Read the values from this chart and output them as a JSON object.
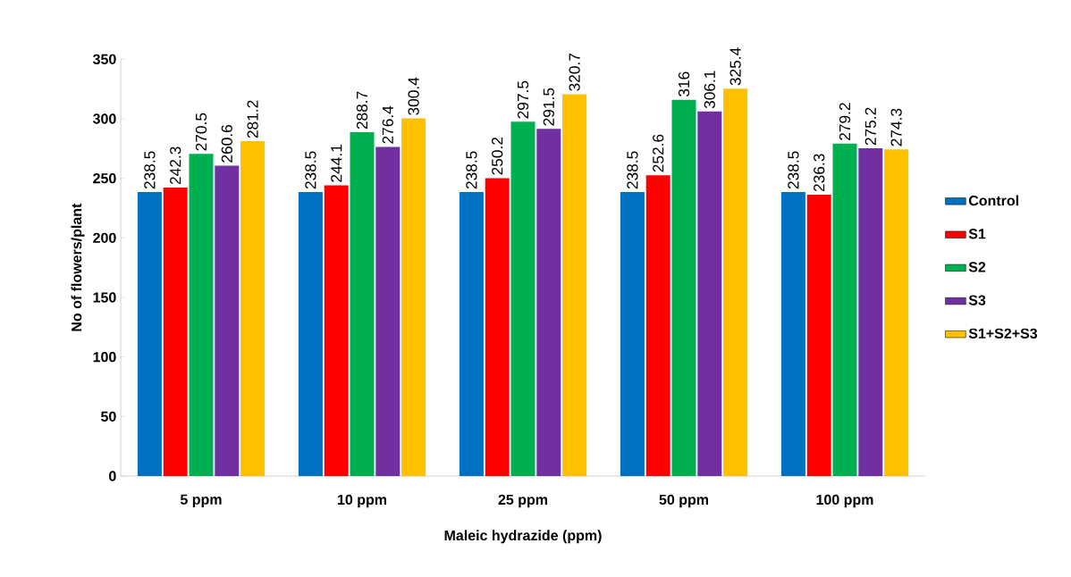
{
  "chart_data": {
    "type": "bar",
    "xlabel": "Maleic hydrazide (ppm)",
    "ylabel": "No of flowers/plant",
    "categories": [
      "5 ppm",
      "10 ppm",
      "25 ppm",
      "50 ppm",
      "100 ppm"
    ],
    "series": [
      {
        "name": "Control",
        "color": "#0070c0",
        "values": [
          238.5,
          238.5,
          238.5,
          238.5,
          238.5
        ]
      },
      {
        "name": "S1",
        "color": "#ff0000",
        "values": [
          242.3,
          244.1,
          250.2,
          252.6,
          236.3
        ]
      },
      {
        "name": "S2",
        "color": "#00b050",
        "values": [
          270.5,
          288.7,
          297.5,
          316,
          279.2
        ]
      },
      {
        "name": "S3",
        "color": "#7030a0",
        "values": [
          260.6,
          276.4,
          291.5,
          306.1,
          275.2
        ]
      },
      {
        "name": "S1+S2+S3",
        "color": "#ffc000",
        "values": [
          281.2,
          300.4,
          320.7,
          325.4,
          274.3
        ]
      }
    ],
    "ylim": [
      0,
      350
    ],
    "yticks": [
      0,
      50,
      100,
      150,
      200,
      250,
      300,
      350
    ],
    "data_labels": true,
    "legend": "right",
    "grid": false
  }
}
